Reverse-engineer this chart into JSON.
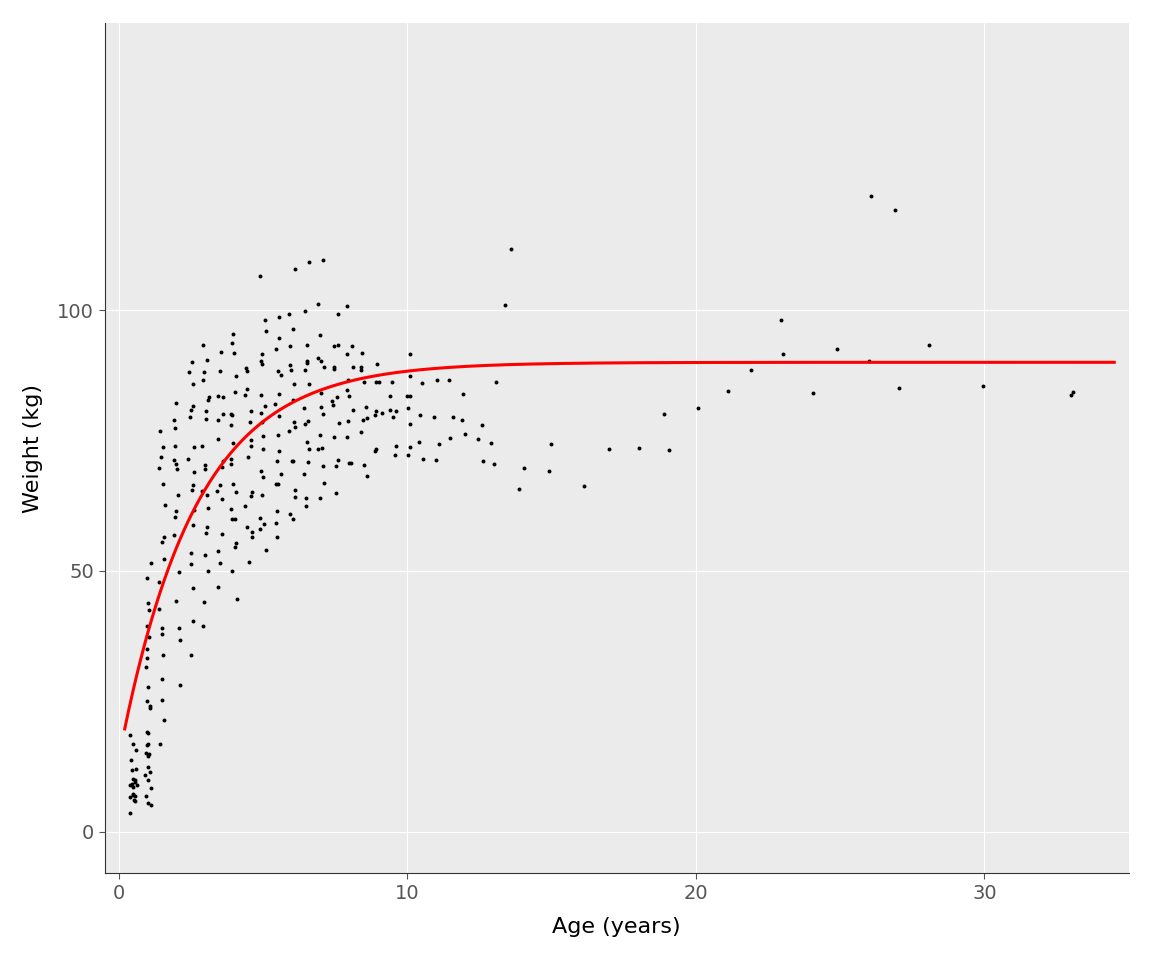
{
  "xlabel": "Age (years)",
  "ylabel": "Weight (kg)",
  "background_color": "#ffffff",
  "panel_background": "#ebebeb",
  "grid_color": "#ffffff",
  "point_color": "#000000",
  "point_size": 8,
  "point_alpha": 1.0,
  "curve_color": "#ff0000",
  "curve_linewidth": 2.2,
  "xlim": [
    -0.5,
    35
  ],
  "ylim": [
    -8,
    155
  ],
  "xticks": [
    0,
    10,
    20,
    30
  ],
  "yticks": [
    0,
    50,
    100
  ],
  "vbgf_Linf": 90.0,
  "vbgf_k": 0.38,
  "vbgf_t0": -0.45,
  "scatter_x": [
    0.5,
    0.5,
    0.5,
    0.5,
    0.5,
    0.5,
    0.5,
    0.5,
    0.5,
    0.5,
    0.5,
    0.5,
    0.5,
    0.5,
    0.5,
    0.5,
    0.5,
    0.5,
    0.5,
    0.5,
    1.0,
    1.0,
    1.0,
    1.0,
    1.0,
    1.0,
    1.0,
    1.0,
    1.0,
    1.0,
    1.0,
    1.0,
    1.0,
    1.0,
    1.0,
    1.0,
    1.0,
    1.0,
    1.0,
    1.0,
    1.0,
    1.0,
    1.0,
    1.0,
    1.0,
    1.0,
    1.0,
    1.0,
    1.5,
    1.5,
    1.5,
    1.5,
    1.5,
    1.5,
    1.5,
    1.5,
    1.5,
    1.5,
    1.5,
    1.5,
    1.5,
    1.5,
    1.5,
    1.5,
    1.5,
    1.5,
    2.0,
    2.0,
    2.0,
    2.0,
    2.0,
    2.0,
    2.0,
    2.0,
    2.0,
    2.0,
    2.0,
    2.0,
    2.0,
    2.0,
    2.0,
    2.0,
    2.5,
    2.5,
    2.5,
    2.5,
    2.5,
    2.5,
    2.5,
    2.5,
    2.5,
    2.5,
    2.5,
    2.5,
    2.5,
    2.5,
    2.5,
    2.5,
    2.5,
    2.5,
    3.0,
    3.0,
    3.0,
    3.0,
    3.0,
    3.0,
    3.0,
    3.0,
    3.0,
    3.0,
    3.0,
    3.0,
    3.0,
    3.0,
    3.0,
    3.0,
    3.0,
    3.0,
    3.0,
    3.0,
    3.5,
    3.5,
    3.5,
    3.5,
    3.5,
    3.5,
    3.5,
    3.5,
    3.5,
    3.5,
    3.5,
    3.5,
    3.5,
    3.5,
    3.5,
    3.5,
    4.0,
    4.0,
    4.0,
    4.0,
    4.0,
    4.0,
    4.0,
    4.0,
    4.0,
    4.0,
    4.0,
    4.0,
    4.0,
    4.0,
    4.0,
    4.0,
    4.0,
    4.0,
    4.0,
    4.0,
    4.5,
    4.5,
    4.5,
    4.5,
    4.5,
    4.5,
    4.5,
    4.5,
    4.5,
    4.5,
    4.5,
    4.5,
    4.5,
    4.5,
    4.5,
    4.5,
    5.0,
    5.0,
    5.0,
    5.0,
    5.0,
    5.0,
    5.0,
    5.0,
    5.0,
    5.0,
    5.0,
    5.0,
    5.0,
    5.0,
    5.0,
    5.0,
    5.0,
    5.0,
    5.0,
    5.5,
    5.5,
    5.5,
    5.5,
    5.5,
    5.5,
    5.5,
    5.5,
    5.5,
    5.5,
    5.5,
    5.5,
    5.5,
    5.5,
    5.5,
    5.5,
    5.5,
    6.0,
    6.0,
    6.0,
    6.0,
    6.0,
    6.0,
    6.0,
    6.0,
    6.0,
    6.0,
    6.0,
    6.0,
    6.0,
    6.0,
    6.0,
    6.0,
    6.0,
    6.5,
    6.5,
    6.5,
    6.5,
    6.5,
    6.5,
    6.5,
    6.5,
    6.5,
    6.5,
    6.5,
    6.5,
    6.5,
    6.5,
    6.5,
    6.5,
    7.0,
    7.0,
    7.0,
    7.0,
    7.0,
    7.0,
    7.0,
    7.0,
    7.0,
    7.0,
    7.0,
    7.0,
    7.0,
    7.0,
    7.0,
    7.5,
    7.5,
    7.5,
    7.5,
    7.5,
    7.5,
    7.5,
    7.5,
    7.5,
    7.5,
    7.5,
    7.5,
    7.5,
    8.0,
    8.0,
    8.0,
    8.0,
    8.0,
    8.0,
    8.0,
    8.0,
    8.0,
    8.0,
    8.0,
    8.0,
    8.5,
    8.5,
    8.5,
    8.5,
    8.5,
    8.5,
    8.5,
    8.5,
    8.5,
    8.5,
    9.0,
    9.0,
    9.0,
    9.0,
    9.0,
    9.0,
    9.0,
    9.0,
    9.5,
    9.5,
    9.5,
    9.5,
    9.5,
    9.5,
    9.5,
    10.0,
    10.0,
    10.0,
    10.0,
    10.0,
    10.0,
    10.0,
    10.0,
    10.5,
    10.5,
    10.5,
    10.5,
    11.0,
    11.0,
    11.0,
    11.0,
    11.5,
    11.5,
    11.5,
    12.0,
    12.0,
    12.0,
    12.5,
    12.5,
    12.5,
    13.0,
    13.0,
    13.0,
    13.5,
    13.5,
    14.0,
    14.0,
    15.0,
    15.0,
    16.0,
    17.0,
    18.0,
    19.0,
    19.0,
    20.0,
    21.0,
    22.0,
    23.0,
    23.0,
    24.0,
    25.0,
    26.0,
    26.0,
    27.0,
    27.0,
    28.0,
    30.0,
    33.0,
    33.0
  ],
  "scatter_y": [
    5,
    5,
    6,
    6,
    7,
    7,
    8,
    8,
    9,
    9,
    10,
    10,
    11,
    11,
    12,
    13,
    14,
    15,
    17,
    18,
    5,
    6,
    7,
    8,
    9,
    10,
    11,
    12,
    13,
    14,
    15,
    16,
    17,
    18,
    20,
    22,
    24,
    26,
    28,
    30,
    32,
    35,
    38,
    40,
    42,
    44,
    47,
    50,
    18,
    22,
    25,
    28,
    32,
    36,
    40,
    44,
    48,
    52,
    55,
    58,
    62,
    65,
    68,
    70,
    72,
    75,
    30,
    35,
    40,
    45,
    50,
    55,
    60,
    62,
    65,
    68,
    70,
    72,
    75,
    78,
    80,
    82,
    35,
    40,
    45,
    50,
    55,
    60,
    62,
    65,
    67,
    70,
    72,
    75,
    78,
    80,
    82,
    85,
    88,
    90,
    40,
    44,
    48,
    52,
    56,
    60,
    62,
    65,
    67,
    70,
    72,
    75,
    78,
    80,
    82,
    85,
    88,
    90,
    92,
    95,
    45,
    50,
    55,
    58,
    62,
    65,
    67,
    70,
    72,
    75,
    78,
    80,
    82,
    85,
    88,
    90,
    46,
    50,
    54,
    56,
    58,
    60,
    62,
    65,
    67,
    70,
    72,
    75,
    78,
    80,
    82,
    85,
    88,
    90,
    92,
    95,
    50,
    55,
    58,
    60,
    62,
    65,
    67,
    70,
    72,
    75,
    78,
    80,
    82,
    85,
    88,
    90,
    55,
    58,
    60,
    62,
    65,
    67,
    70,
    72,
    75,
    78,
    80,
    82,
    85,
    88,
    90,
    92,
    95,
    100,
    108,
    58,
    60,
    62,
    65,
    67,
    70,
    72,
    75,
    78,
    80,
    82,
    85,
    88,
    90,
    92,
    95,
    100,
    60,
    62,
    65,
    67,
    70,
    72,
    75,
    78,
    80,
    82,
    85,
    88,
    90,
    92,
    95,
    100,
    108,
    62,
    65,
    67,
    70,
    72,
    75,
    78,
    80,
    82,
    85,
    88,
    90,
    92,
    95,
    100,
    108,
    65,
    67,
    70,
    72,
    75,
    78,
    80,
    82,
    85,
    88,
    90,
    92,
    95,
    100,
    108,
    67,
    70,
    72,
    75,
    78,
    80,
    82,
    85,
    88,
    90,
    92,
    95,
    100,
    70,
    72,
    75,
    78,
    80,
    82,
    85,
    88,
    90,
    92,
    95,
    100,
    70,
    72,
    75,
    78,
    80,
    82,
    85,
    88,
    90,
    92,
    72,
    75,
    78,
    80,
    82,
    85,
    88,
    90,
    72,
    75,
    78,
    80,
    82,
    85,
    88,
    72,
    75,
    78,
    80,
    82,
    85,
    88,
    92,
    72,
    75,
    80,
    85,
    72,
    75,
    80,
    88,
    75,
    80,
    85,
    75,
    80,
    85,
    70,
    75,
    80,
    70,
    75,
    85,
    100,
    110,
    65,
    68,
    70,
    75,
    68,
    72,
    75,
    73,
    80,
    80,
    85,
    90,
    92,
    100,
    85,
    92,
    92,
    120,
    85,
    120,
    92,
    87,
    85,
    82
  ]
}
